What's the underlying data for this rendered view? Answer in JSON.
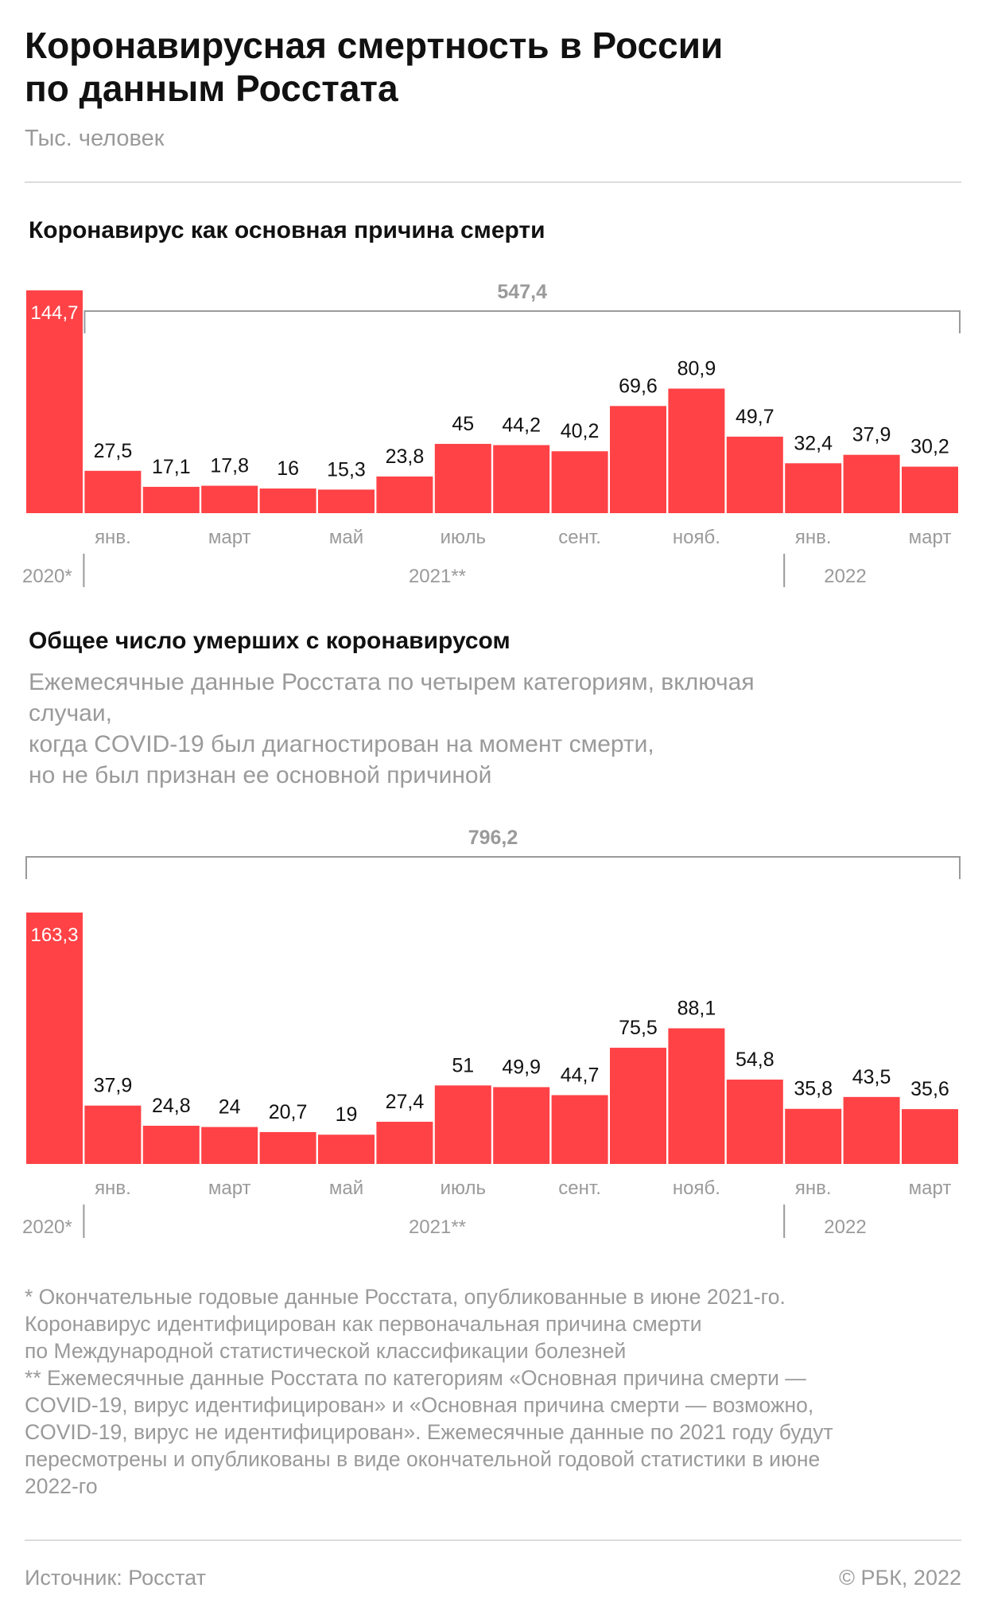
{
  "header": {
    "title_lines": [
      "Коронавирусная смертность в России",
      "по данным Росстата"
    ],
    "unit": "Тыс. человек"
  },
  "colors": {
    "bar": "#ff4246",
    "bracket": "#9a9a9a",
    "text_gray": "#9a9a9a"
  },
  "chart_data": [
    {
      "type": "bar",
      "title": "Коронавирус как основная причина смерти",
      "categories": [
        "2020",
        "янв. 2021",
        "февр. 2021",
        "март 2021",
        "апр. 2021",
        "май 2021",
        "июнь 2021",
        "июль 2021",
        "авг. 2021",
        "сент. 2021",
        "окт. 2021",
        "нояб. 2021",
        "дек. 2021",
        "янв. 2022",
        "февр. 2022",
        "март 2022"
      ],
      "values": [
        144.7,
        27.5,
        17.1,
        17.8,
        16,
        15.3,
        23.8,
        45,
        44.2,
        40.2,
        69.6,
        80.9,
        49.7,
        32.4,
        37.9,
        30.2
      ],
      "value_labels": [
        "144,7",
        "27,5",
        "17,1",
        "17,8",
        "16",
        "15,3",
        "23,8",
        "45",
        "44,2",
        "40,2",
        "69,6",
        "80,9",
        "49,7",
        "32,4",
        "37,9",
        "30,2"
      ],
      "month_ticks": [
        "",
        "янв.",
        "",
        "март",
        "",
        "май",
        "",
        "июль",
        "",
        "сент.",
        "",
        "нояб.",
        "",
        "янв.",
        "",
        "март"
      ],
      "year_labels": [
        "2020*",
        "2021**",
        "2022"
      ],
      "total": {
        "label": "547,4",
        "from_index": 1,
        "to_index": 15
      }
    },
    {
      "type": "bar",
      "title": "Общее число умерших с коронавирусом",
      "description_lines": [
        "Ежемесячные данные Росстата по четырем категориям, включая",
        "случаи,",
        "когда COVID-19 был диагностирован на момент смерти,",
        "но не был признан ее основной причиной"
      ],
      "categories": [
        "2020",
        "янв. 2021",
        "февр. 2021",
        "март 2021",
        "апр. 2021",
        "май 2021",
        "июнь 2021",
        "июль 2021",
        "авг. 2021",
        "сент. 2021",
        "окт. 2021",
        "нояб. 2021",
        "дек. 2021",
        "янв. 2022",
        "февр. 2022",
        "март 2022"
      ],
      "values": [
        163.3,
        37.9,
        24.8,
        24,
        20.7,
        19,
        27.4,
        51,
        49.9,
        44.7,
        75.5,
        88.1,
        54.8,
        35.8,
        43.5,
        35.6
      ],
      "value_labels": [
        "163,3",
        "37,9",
        "24,8",
        "24",
        "20,7",
        "19",
        "27,4",
        "51",
        "49,9",
        "44,7",
        "75,5",
        "88,1",
        "54,8",
        "35,8",
        "43,5",
        "35,6"
      ],
      "month_ticks": [
        "",
        "янв.",
        "",
        "март",
        "",
        "май",
        "",
        "июль",
        "",
        "сент.",
        "",
        "нояб.",
        "",
        "янв.",
        "",
        "март"
      ],
      "year_labels": [
        "2020*",
        "2021**",
        "2022"
      ],
      "total": {
        "label": "796,2",
        "from_index": 0,
        "to_index": 15
      }
    }
  ],
  "footnotes": [
    "* Окончательные годовые данные Росстата, опубликованные в июне 2021-го.",
    "Коронавирус идентифицирован как первоначальная причина смерти",
    "по Международной статистической классификации болезней",
    "** Ежемесячные данные Росстата по категориям «Основная причина смерти —",
    "COVID-19, вирус идентифицирован» и «Основная причина смерти  — возможно,",
    "COVID-19, вирус не идентифицирован». Ежемесячные данные по 2021 году будут",
    "пересмотрены и опубликованы в виде окончательной годовой статистики в июне",
    "2022-го"
  ],
  "footer": {
    "source": "Источник: Росстат",
    "copyright": "© РБК, 2022"
  }
}
